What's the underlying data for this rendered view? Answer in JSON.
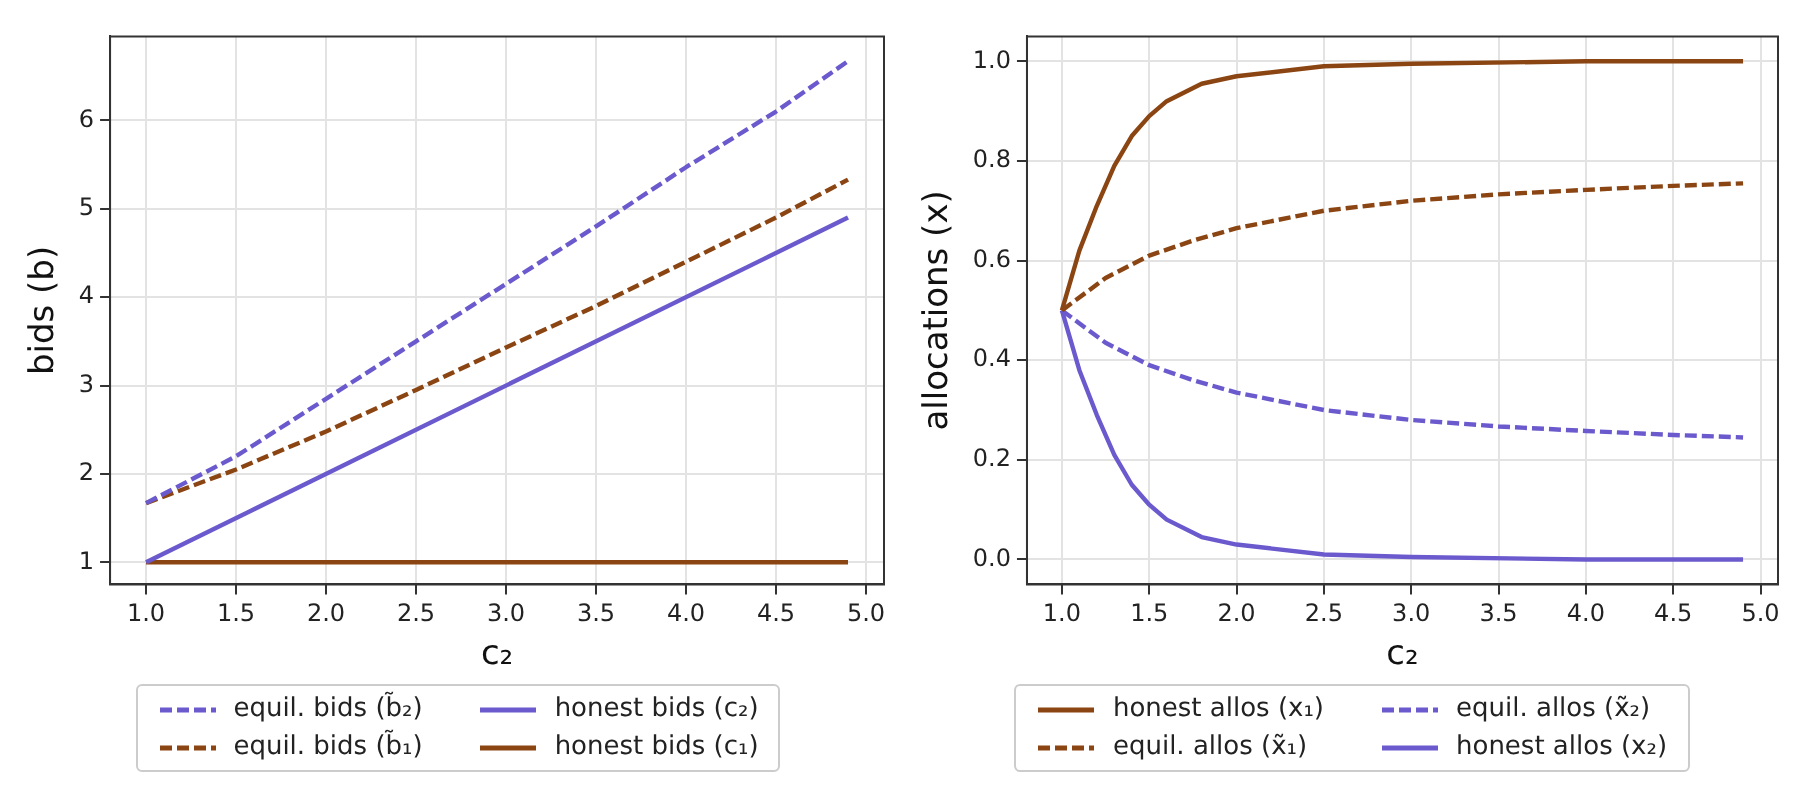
{
  "chart_data": [
    {
      "type": "line",
      "xlabel": "c₂",
      "ylabel": "bids (b)",
      "legend": "bottom",
      "grid": true,
      "marker": "none",
      "xlim": [
        0.8,
        5.1
      ],
      "xticks": [
        {
          "value": 1,
          "label": "1.0"
        },
        {
          "value": 1.5,
          "label": "1.5"
        },
        {
          "value": 2,
          "label": "2.0"
        },
        {
          "value": 2.5,
          "label": "2.5"
        },
        {
          "value": 3,
          "label": "3.0"
        },
        {
          "value": 3.5,
          "label": "3.5"
        },
        {
          "value": 4,
          "label": "4.0"
        },
        {
          "value": 4.5,
          "label": "4.5"
        },
        {
          "value": 5,
          "label": "5.0"
        }
      ],
      "ylim": [
        0.75,
        6.95
      ],
      "yticks": [
        1,
        2,
        3,
        4,
        5,
        6
      ],
      "series": [
        {
          "name": "equil. bids (b̃₂)",
          "color": "#6a5acd",
          "line_style": "dashed",
          "x": [
            1.0,
            1.5,
            2.0,
            2.5,
            3.0,
            3.5,
            4.0,
            4.5,
            4.9
          ],
          "values": [
            1.67,
            2.2,
            2.85,
            3.5,
            4.15,
            4.8,
            5.47,
            6.1,
            6.67
          ]
        },
        {
          "name": "equil. bids (b̃₁)",
          "color": "#8b4513",
          "line_style": "dashed",
          "x": [
            1.0,
            1.5,
            2.0,
            2.5,
            3.0,
            3.5,
            4.0,
            4.5,
            4.9
          ],
          "values": [
            1.67,
            2.05,
            2.48,
            2.95,
            3.43,
            3.9,
            4.4,
            4.9,
            5.33
          ]
        },
        {
          "name": "honest bids (c₂)",
          "color": "#6a5acd",
          "line_style": "solid",
          "x": [
            1.0,
            4.9
          ],
          "values": [
            1.0,
            4.9
          ]
        },
        {
          "name": "honest bids (c₁)",
          "color": "#8b4513",
          "line_style": "solid",
          "x": [
            1.0,
            4.9
          ],
          "values": [
            1.0,
            1.0
          ]
        }
      ]
    },
    {
      "type": "line",
      "xlabel": "c₂",
      "ylabel": "allocations (x)",
      "legend": "bottom",
      "grid": true,
      "marker": "none",
      "xlim": [
        0.8,
        5.1
      ],
      "xticks": [
        {
          "value": 1,
          "label": "1.0"
        },
        {
          "value": 1.5,
          "label": "1.5"
        },
        {
          "value": 2,
          "label": "2.0"
        },
        {
          "value": 2.5,
          "label": "2.5"
        },
        {
          "value": 3,
          "label": "3.0"
        },
        {
          "value": 3.5,
          "label": "3.5"
        },
        {
          "value": 4,
          "label": "4.0"
        },
        {
          "value": 4.5,
          "label": "4.5"
        },
        {
          "value": 5,
          "label": "5.0"
        }
      ],
      "ylim": [
        -0.05,
        1.05
      ],
      "yticks": [
        {
          "value": 0,
          "label": "0.0"
        },
        {
          "value": 0.2,
          "label": "0.2"
        },
        {
          "value": 0.4,
          "label": "0.4"
        },
        {
          "value": 0.6,
          "label": "0.6"
        },
        {
          "value": 0.8,
          "label": "0.8"
        },
        {
          "value": 1,
          "label": "1.0"
        }
      ],
      "series": [
        {
          "name": "honest allos (x₁)",
          "color": "#8b4513",
          "line_style": "solid",
          "x": [
            1.0,
            1.1,
            1.2,
            1.3,
            1.4,
            1.5,
            1.6,
            1.8,
            2.0,
            2.5,
            3.0,
            4.0,
            4.9
          ],
          "values": [
            0.5,
            0.62,
            0.71,
            0.79,
            0.85,
            0.89,
            0.92,
            0.955,
            0.97,
            0.99,
            0.995,
            1.0,
            1.0
          ]
        },
        {
          "name": "equil. allos (x̃₁)",
          "color": "#8b4513",
          "line_style": "dashed",
          "x": [
            1.0,
            1.25,
            1.5,
            1.75,
            2.0,
            2.5,
            3.0,
            3.5,
            4.0,
            4.5,
            4.9
          ],
          "values": [
            0.5,
            0.565,
            0.61,
            0.64,
            0.665,
            0.7,
            0.72,
            0.733,
            0.742,
            0.75,
            0.755
          ]
        },
        {
          "name": "equil. allos (x̃₂)",
          "color": "#6a5acd",
          "line_style": "dashed",
          "x": [
            1.0,
            1.25,
            1.5,
            1.75,
            2.0,
            2.5,
            3.0,
            3.5,
            4.0,
            4.5,
            4.9
          ],
          "values": [
            0.5,
            0.435,
            0.39,
            0.36,
            0.335,
            0.3,
            0.28,
            0.267,
            0.258,
            0.25,
            0.245
          ]
        },
        {
          "name": "honest allos (x₂)",
          "color": "#6a5acd",
          "line_style": "solid",
          "x": [
            1.0,
            1.1,
            1.2,
            1.3,
            1.4,
            1.5,
            1.6,
            1.8,
            2.0,
            2.5,
            3.0,
            4.0,
            4.9
          ],
          "values": [
            0.5,
            0.38,
            0.29,
            0.21,
            0.15,
            0.11,
            0.08,
            0.045,
            0.03,
            0.01,
            0.005,
            0.0,
            0.0
          ]
        }
      ]
    }
  ]
}
